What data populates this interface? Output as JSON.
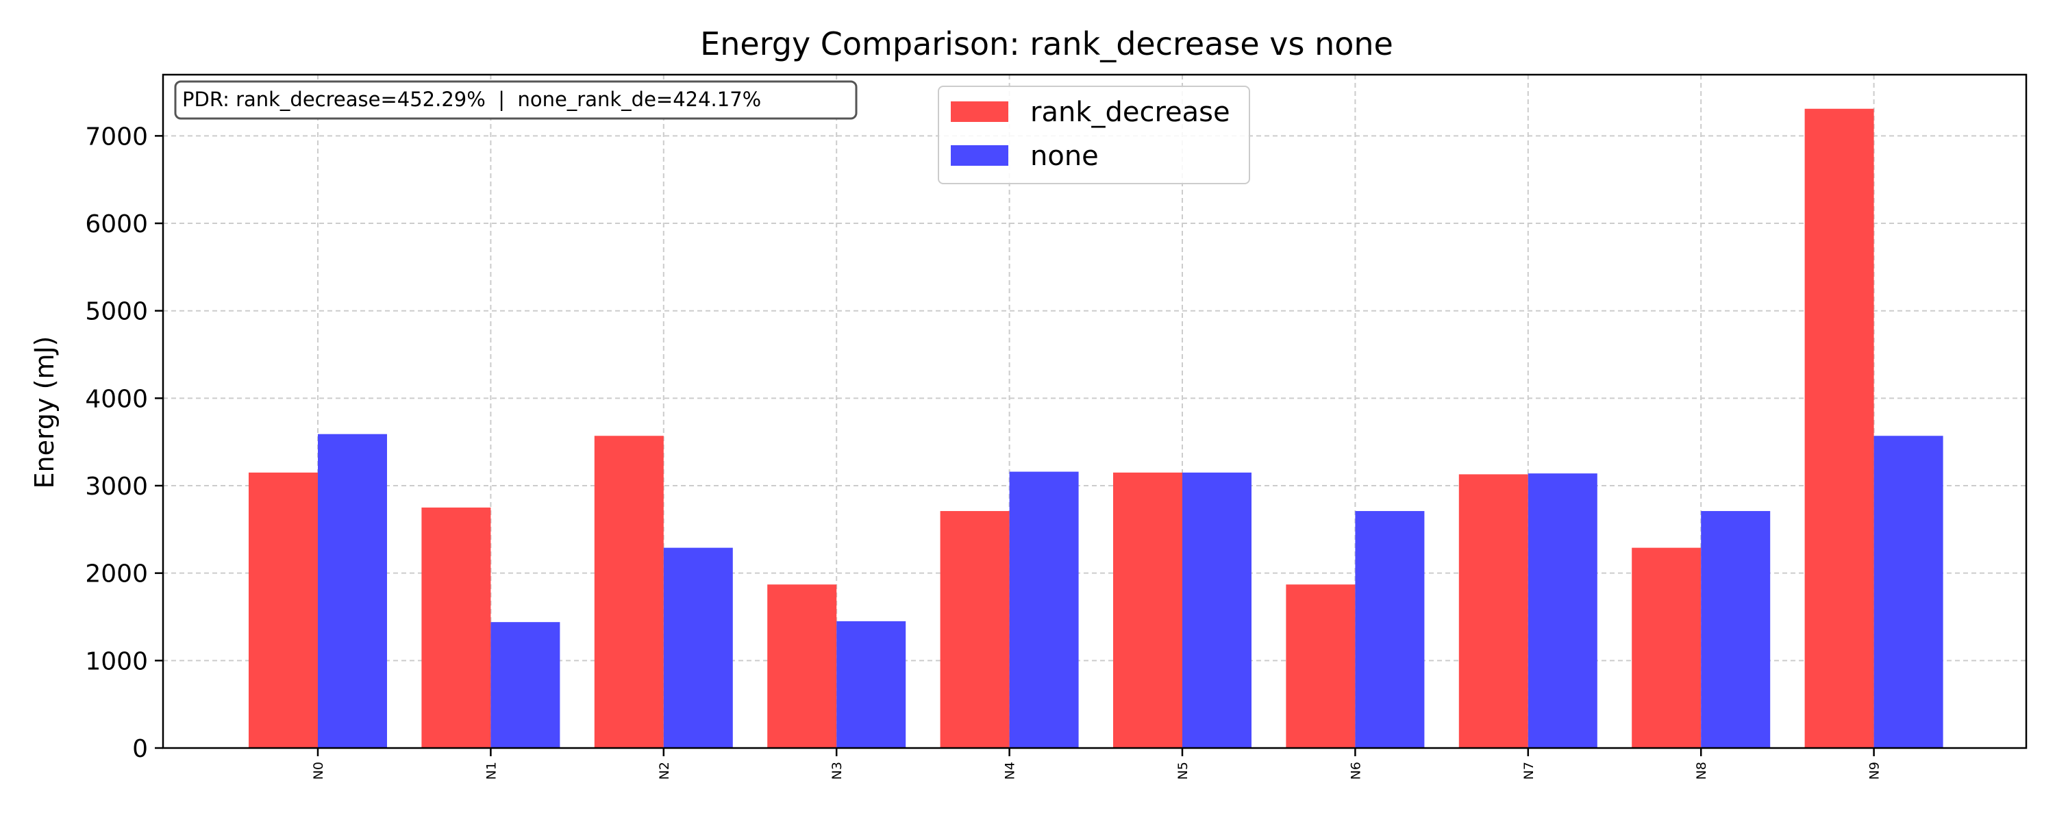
{
  "chart_data": {
    "type": "bar",
    "title": "Energy Comparison: rank_decrease vs none",
    "xlabel": "",
    "ylabel": "Energy (mJ)",
    "ylim": [
      0,
      7700
    ],
    "yticks": [
      0,
      1000,
      2000,
      3000,
      4000,
      5000,
      6000,
      7000
    ],
    "grid": true,
    "legend_position": "top-center",
    "categories": [
      "N0",
      "N1",
      "N2",
      "N3",
      "N4",
      "N5",
      "N6",
      "N7",
      "N8",
      "N9"
    ],
    "series": [
      {
        "name": "rank_decrease",
        "color": "#ff4a4a",
        "values": [
          3150,
          2750,
          3570,
          1870,
          2710,
          3150,
          1870,
          3130,
          2290,
          7310
        ]
      },
      {
        "name": "none",
        "color": "#4a4aff",
        "values": [
          3590,
          1440,
          2290,
          1450,
          3160,
          3150,
          2710,
          3140,
          2710,
          3570
        ]
      }
    ],
    "annotation": "PDR: rank_decrease=452.29%  |  none_rank_de=424.17%"
  }
}
